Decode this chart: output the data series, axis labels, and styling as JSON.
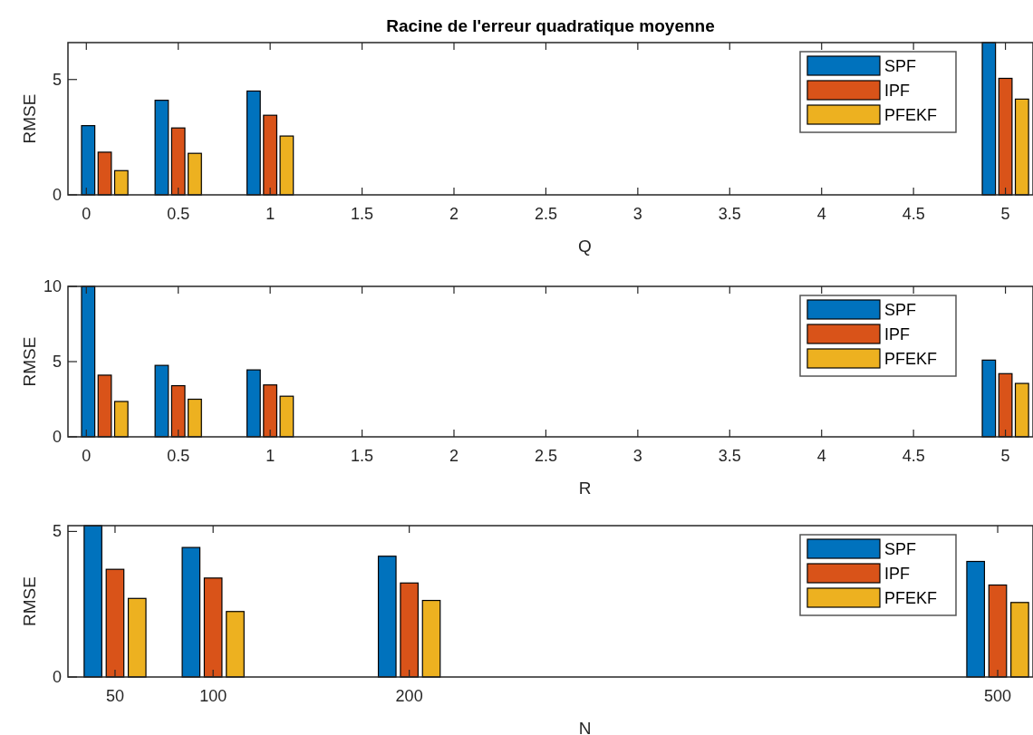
{
  "chart_data": [
    {
      "type": "bar",
      "title": "Racine de l'erreur quadratique moyenne",
      "xlabel": "Q",
      "ylabel": "RMSE",
      "x": [
        0.1,
        0.5,
        1,
        5
      ],
      "xlim": [
        -0.1,
        5.15
      ],
      "xticks": [
        0,
        0.5,
        1,
        1.5,
        2,
        2.5,
        3,
        3.5,
        4,
        4.5,
        5
      ],
      "ylim": [
        0,
        6.6
      ],
      "yticks": [
        0,
        5
      ],
      "legend": "top right",
      "series": [
        {
          "name": "SPF",
          "color": "#0072bd",
          "values": [
            3.0,
            4.1,
            4.5,
            6.6
          ]
        },
        {
          "name": "IPF",
          "color": "#d95319",
          "values": [
            1.85,
            2.9,
            3.45,
            5.05
          ]
        },
        {
          "name": "PFEKF",
          "color": "#edb120",
          "values": [
            1.05,
            1.8,
            2.55,
            4.15
          ]
        }
      ]
    },
    {
      "type": "bar",
      "xlabel": "R",
      "ylabel": "RMSE",
      "x": [
        0.1,
        0.5,
        1,
        5
      ],
      "xlim": [
        -0.1,
        5.15
      ],
      "xticks": [
        0,
        0.5,
        1,
        1.5,
        2,
        2.5,
        3,
        3.5,
        4,
        4.5,
        5
      ],
      "ylim": [
        0,
        10
      ],
      "yticks": [
        0,
        5,
        10
      ],
      "legend": "top right",
      "series": [
        {
          "name": "SPF",
          "color": "#0072bd",
          "values": [
            10,
            4.75,
            4.45,
            5.1
          ]
        },
        {
          "name": "IPF",
          "color": "#d95319",
          "values": [
            4.1,
            3.4,
            3.45,
            4.2
          ]
        },
        {
          "name": "PFEKF",
          "color": "#edb120",
          "values": [
            2.35,
            2.5,
            2.7,
            3.55
          ]
        }
      ]
    },
    {
      "type": "bar",
      "xlabel": "N",
      "ylabel": "RMSE",
      "x": [
        50,
        100,
        200,
        500
      ],
      "xlim": [
        26,
        518
      ],
      "xticks": [
        50,
        100,
        200,
        500
      ],
      "ylim": [
        0,
        5.2
      ],
      "yticks": [
        0,
        5
      ],
      "legend": "top right",
      "series": [
        {
          "name": "SPF",
          "color": "#0072bd",
          "values": [
            5.2,
            4.45,
            4.15,
            3.97
          ]
        },
        {
          "name": "IPF",
          "color": "#d95319",
          "values": [
            3.7,
            3.4,
            3.23,
            3.16
          ]
        },
        {
          "name": "PFEKF",
          "color": "#edb120",
          "values": [
            2.7,
            2.25,
            2.63,
            2.56
          ]
        }
      ]
    }
  ]
}
